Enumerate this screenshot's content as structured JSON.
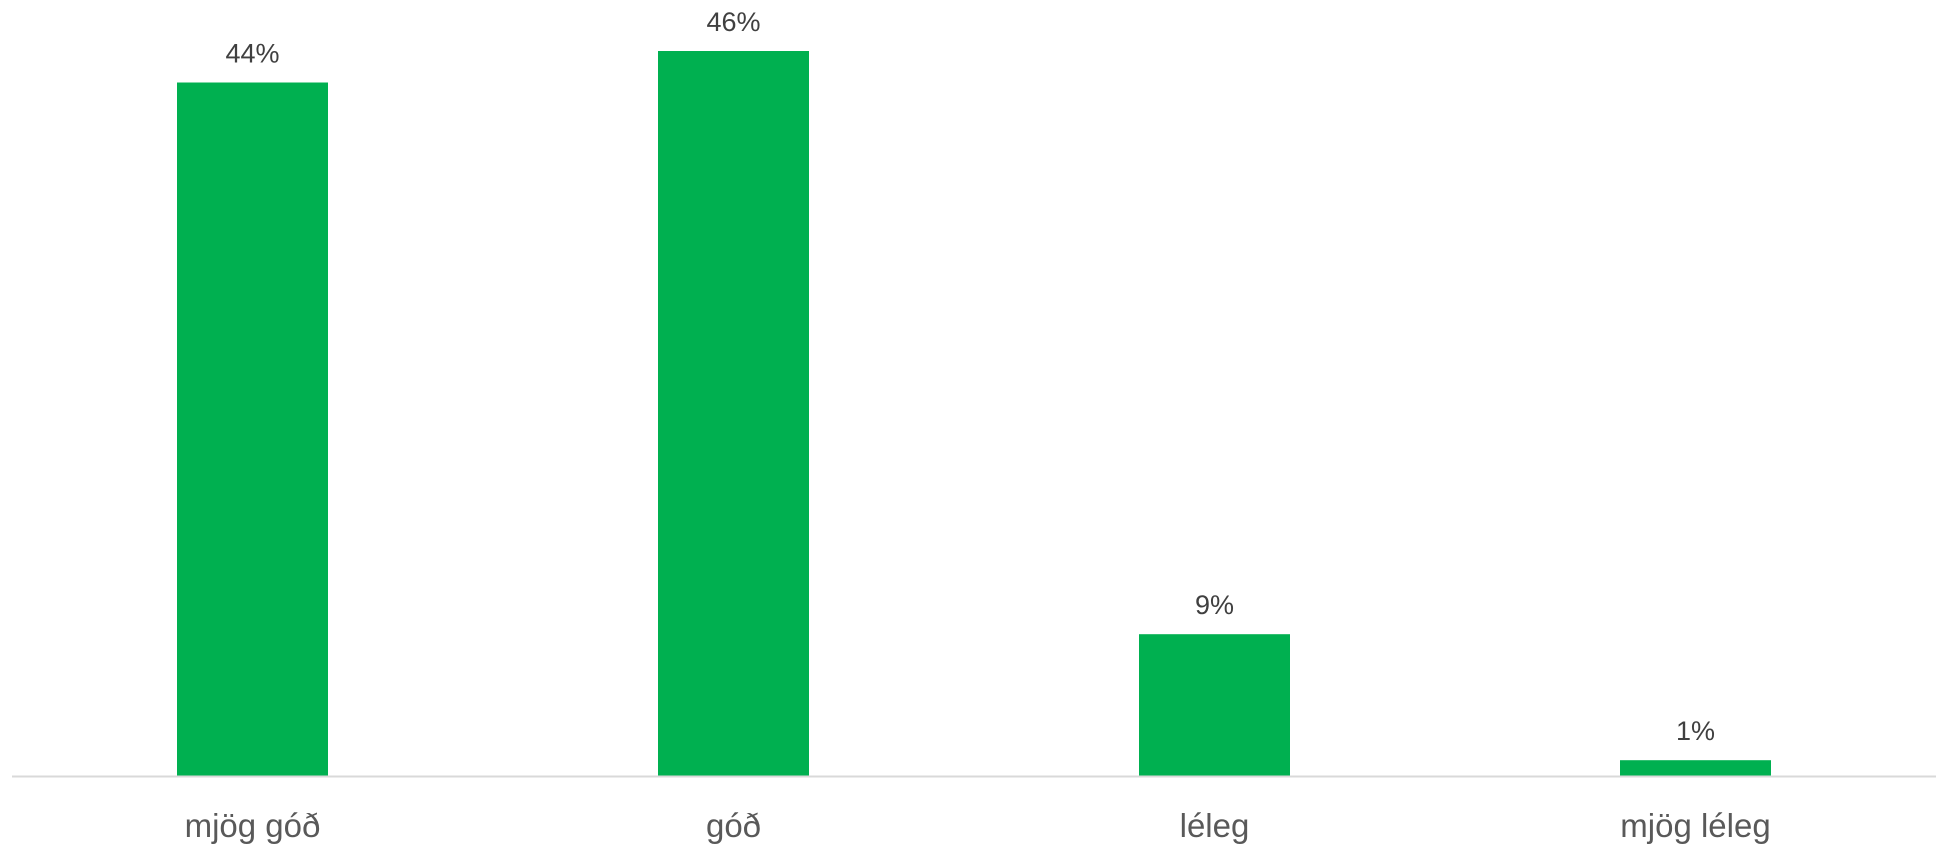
{
  "chart_data": {
    "type": "bar",
    "categories": [
      "mjög góð",
      "góð",
      "léleg",
      "mjög léleg"
    ],
    "values": [
      44,
      46,
      9,
      1
    ],
    "value_labels": [
      "44%",
      "46%",
      "9%",
      "1%"
    ],
    "ylim": [
      0,
      46
    ],
    "grid": false,
    "legend": "none",
    "bar_color": "#00B050",
    "axis_color": "#D9D9D9"
  }
}
